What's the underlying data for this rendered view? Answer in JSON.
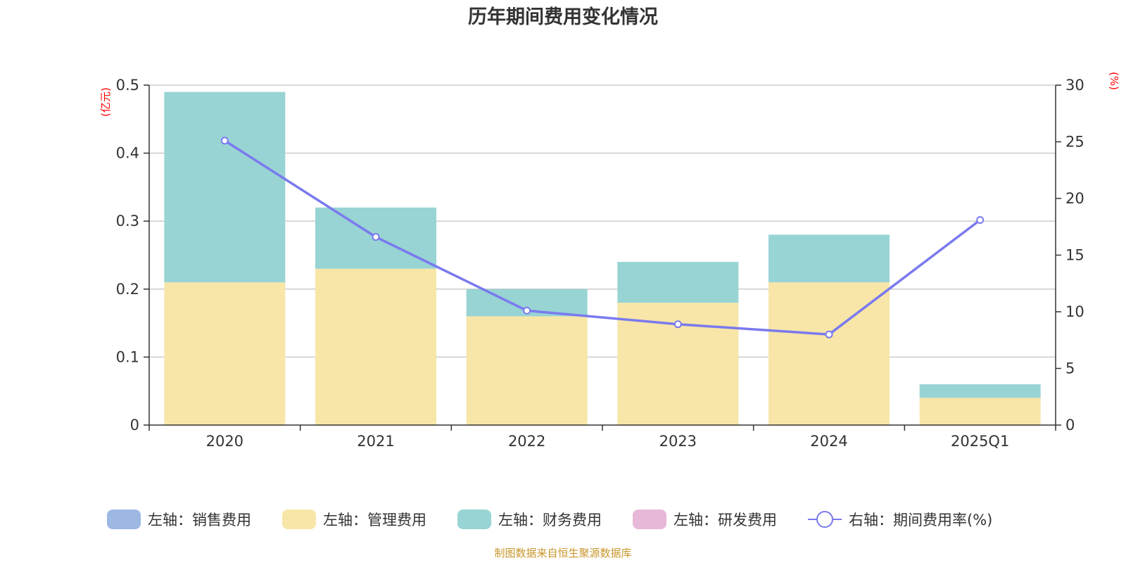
{
  "chart_data": {
    "type": "bar",
    "title": "历年期间费用变化情况",
    "categories": [
      "2020",
      "2021",
      "2022",
      "2023",
      "2024",
      "2025Q1"
    ],
    "stacked": true,
    "series": [
      {
        "name": "左轴：销售费用",
        "axis": "left",
        "kind": "bar",
        "color": "#9db8e3",
        "values": [
          0,
          0,
          0,
          0,
          0,
          0
        ]
      },
      {
        "name": "左轴：管理费用",
        "axis": "left",
        "kind": "bar",
        "color": "#f7e6a8",
        "values": [
          0.21,
          0.23,
          0.16,
          0.18,
          0.21,
          0.04
        ]
      },
      {
        "name": "左轴：财务费用",
        "axis": "left",
        "kind": "bar",
        "color": "#98d4d4",
        "values": [
          0.28,
          0.09,
          0.04,
          0.06,
          0.07,
          0.02
        ]
      },
      {
        "name": "左轴：研发费用",
        "axis": "left",
        "kind": "bar",
        "color": "#e8b8d8",
        "values": [
          0,
          0,
          0,
          0,
          0,
          0
        ]
      },
      {
        "name": "右轴：期间费用率(%)",
        "axis": "right",
        "kind": "line",
        "color": "#7a7aee",
        "values": [
          25.1,
          16.6,
          10.1,
          8.9,
          8.0,
          18.1
        ]
      }
    ],
    "y_left": {
      "label": "(亿元)",
      "ylim": [
        0,
        0.5
      ],
      "ticks": [
        "0",
        "0.1",
        "0.2",
        "0.3",
        "0.4",
        "0.5"
      ],
      "tick_values": [
        0,
        0.1,
        0.2,
        0.3,
        0.4,
        0.5
      ]
    },
    "y_right": {
      "label": "(%)",
      "ylim": [
        0,
        30
      ],
      "ticks": [
        "0",
        "5",
        "10",
        "15",
        "20",
        "25",
        "30"
      ],
      "tick_values": [
        0,
        5,
        10,
        15,
        20,
        25,
        30
      ]
    },
    "grid": true,
    "legend_position": "bottom"
  },
  "source_text": "制图数据来自恒生聚源数据库",
  "colors": {
    "grid": "#cccccc",
    "axis": "#333333",
    "unit": "#ff0000",
    "source": "#c8962a"
  }
}
